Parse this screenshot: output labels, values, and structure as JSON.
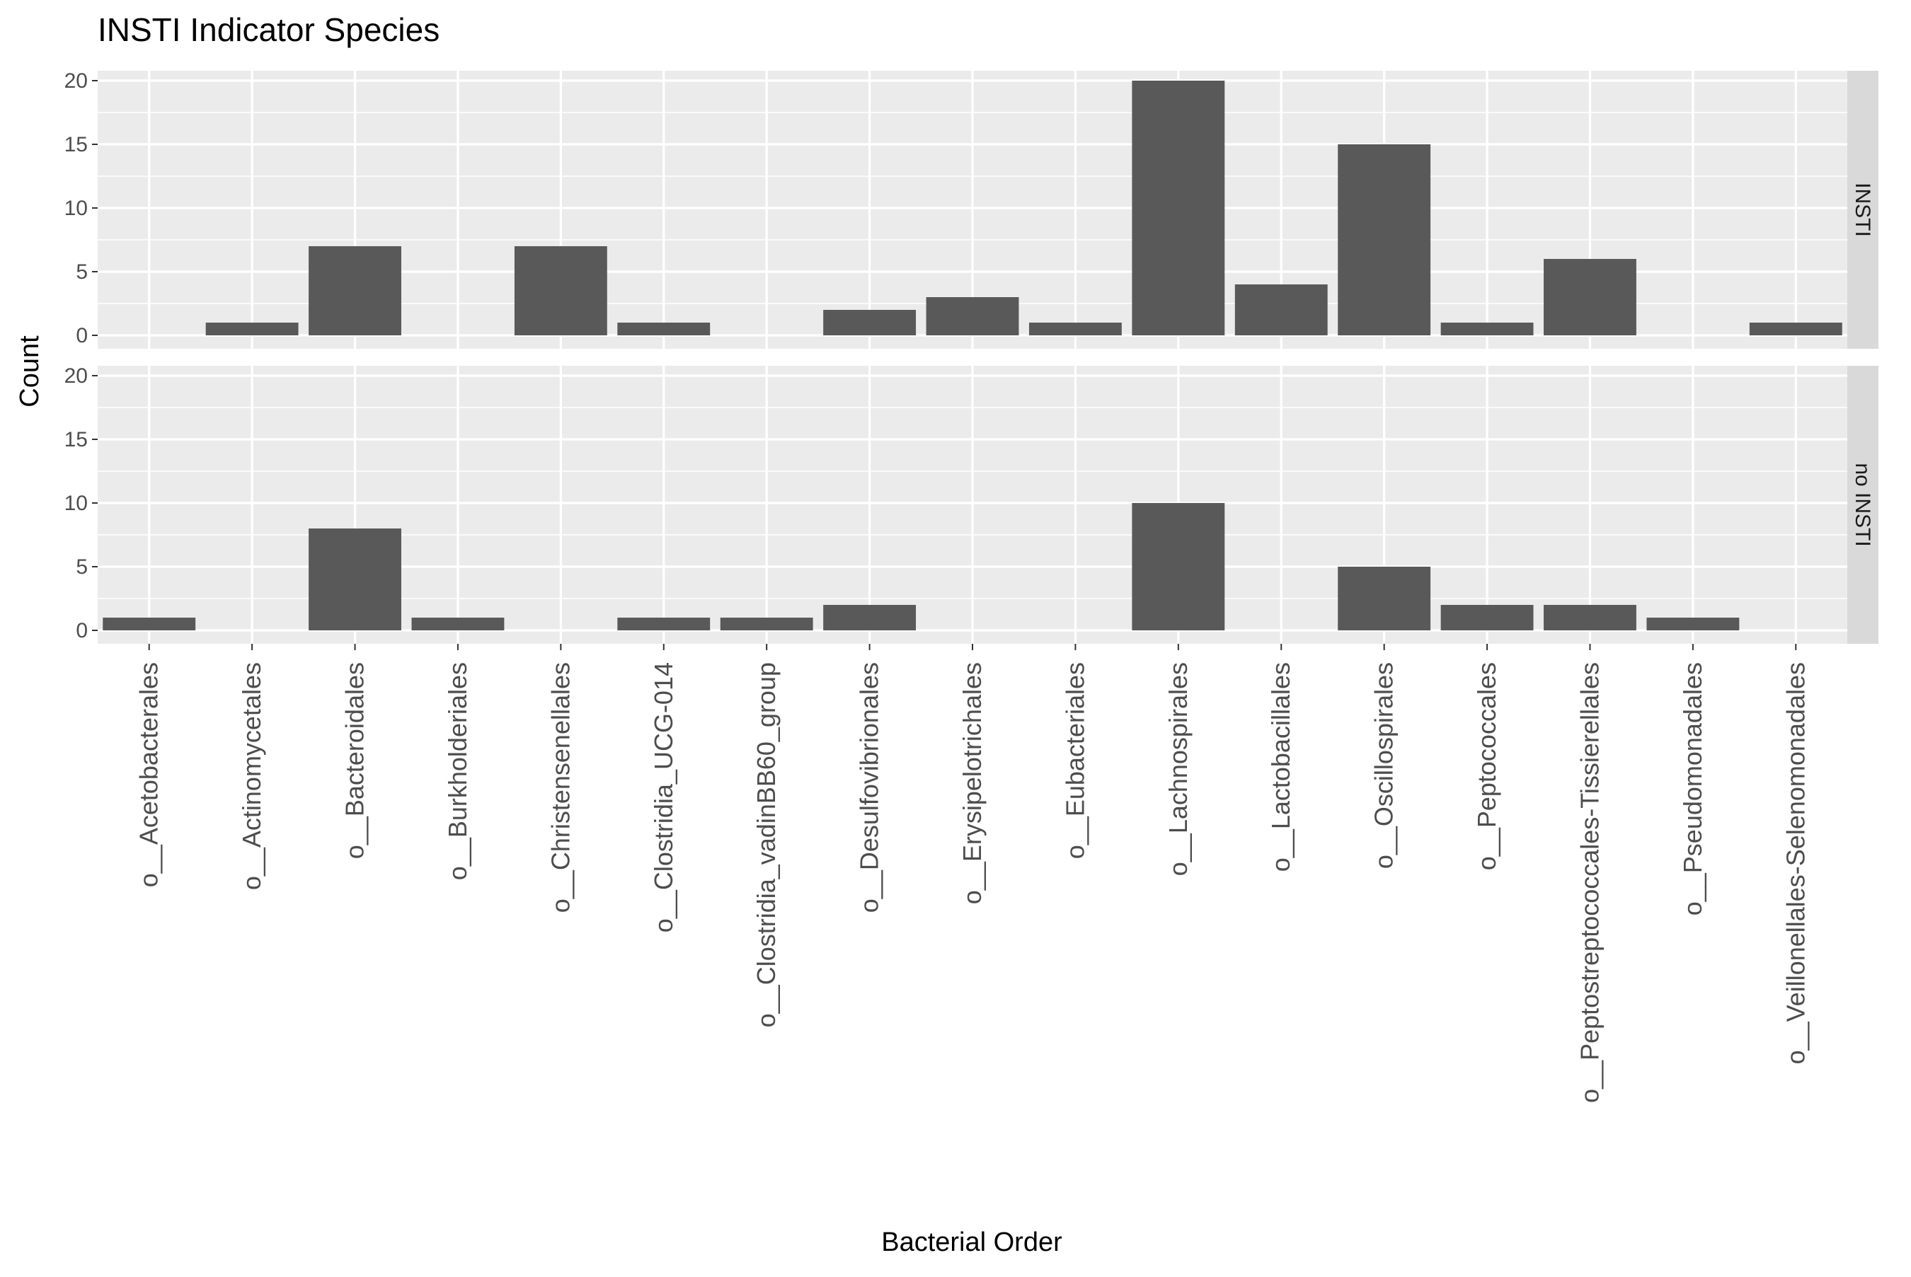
{
  "chart_data": {
    "type": "bar",
    "title": "INSTI Indicator Species",
    "xlabel": "Bacterial Order",
    "ylabel": "Count",
    "ylim": [
      0,
      21
    ],
    "yticks": [
      0,
      5,
      10,
      15,
      20
    ],
    "grid": true,
    "legend": "none",
    "categories": [
      "o__Acetobacterales",
      "o__Actinomycetales",
      "o__Bacteroidales",
      "o__Burkholderiales",
      "o__Christensenellales",
      "o__Clostridia_UCG-014",
      "o__Clostridia_vadinBB60_group",
      "o__Desulfovibrionales",
      "o__Erysipelotrichales",
      "o__Eubacteriales",
      "o__Lachnospirales",
      "o__Lactobacillales",
      "o__Oscillospirales",
      "o__Peptococcales",
      "o__Peptostreptococcales-Tissierellales",
      "o__Pseudomonadales",
      "o__Veillonellales-Selenomonadales"
    ],
    "facets": [
      {
        "label": "INSTI",
        "values": [
          null,
          1,
          7,
          null,
          7,
          1,
          null,
          2,
          3,
          1,
          20,
          4,
          15,
          1,
          6,
          null,
          1
        ]
      },
      {
        "label": "no INSTI",
        "values": [
          1,
          null,
          8,
          1,
          null,
          1,
          1,
          2,
          null,
          null,
          10,
          null,
          5,
          2,
          2,
          1,
          null
        ]
      }
    ]
  }
}
